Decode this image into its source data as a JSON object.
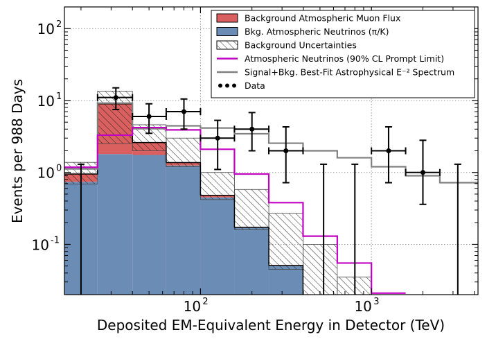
{
  "chart_data": {
    "type": "step-histogram",
    "xscale": "log",
    "yscale": "log",
    "xlim": [
      16,
      4200
    ],
    "ylim": [
      0.02,
      200
    ],
    "xlabel": "Deposited EM-Equivalent Energy in Detector (TeV)",
    "ylabel": "Events per 988 Days",
    "x_ticks": [
      {
        "value": 100,
        "base": "10",
        "exp": "2"
      },
      {
        "value": 1000,
        "base": "10",
        "exp": "3"
      }
    ],
    "y_ticks": [
      {
        "value": 0.1,
        "base": "10",
        "exp": "-1"
      },
      {
        "value": 1,
        "base": "10",
        "exp": "0"
      },
      {
        "value": 10,
        "base": "10",
        "exp": "1"
      },
      {
        "value": 100,
        "base": "10",
        "exp": "2"
      }
    ],
    "bin_edges": [
      16,
      25,
      40,
      63,
      100,
      158,
      251,
      398,
      631,
      1000,
      1585,
      2512,
      4200
    ],
    "neutrino_bkg": [
      0.74,
      1.8,
      1.75,
      1.25,
      0.45,
      0.17,
      0.05,
      0,
      0,
      0,
      0,
      0
    ],
    "muon_bkg": [
      0.21,
      7.2,
      0.85,
      0.12,
      0.03,
      0.002,
      0.001,
      0,
      0,
      0,
      0,
      0
    ],
    "uncertainty_band": [
      [
        0.69,
        1.38
      ],
      [
        2.5,
        13.5
      ],
      [
        2.0,
        4.6
      ],
      [
        1.2,
        3.0
      ],
      [
        0.42,
        1.0
      ],
      [
        0.16,
        0.58
      ],
      [
        0.045,
        0.27
      ],
      [
        0.02,
        0.1
      ],
      [
        0.02,
        0.035
      ],
      [
        0,
        0
      ],
      [
        0,
        0
      ],
      [
        0,
        0
      ]
    ],
    "prompt_limit": [
      1.18,
      3.3,
      4.2,
      3.9,
      2.1,
      0.95,
      0.38,
      0.13,
      0.055,
      0.021,
      0.0,
      0.0
    ],
    "best_fit": [
      1.12,
      9.2,
      4.05,
      4.45,
      4.15,
      3.45,
      2.55,
      2.0,
      1.6,
      1.2,
      0.9,
      0.72
    ],
    "data_points": [
      {
        "x": 20,
        "y": 0,
        "ylo": 0,
        "yhi": 1.3,
        "xlo": 20,
        "xhi": 20
      },
      {
        "x": 32,
        "y": 11,
        "ylo": 7.5,
        "yhi": 15,
        "xlo": 25,
        "xhi": 40
      },
      {
        "x": 50,
        "y": 6,
        "ylo": 3.5,
        "yhi": 9,
        "xlo": 40,
        "xhi": 63
      },
      {
        "x": 80,
        "y": 7,
        "ylo": 4,
        "yhi": 10.5,
        "xlo": 63,
        "xhi": 100
      },
      {
        "x": 126,
        "y": 3,
        "ylo": 1.1,
        "yhi": 5.3,
        "xlo": 100,
        "xhi": 158
      },
      {
        "x": 200,
        "y": 4,
        "ylo": 2,
        "yhi": 6.8,
        "xlo": 158,
        "xhi": 251
      },
      {
        "x": 316,
        "y": 2,
        "ylo": 0.72,
        "yhi": 4.3,
        "xlo": 251,
        "xhi": 398
      },
      {
        "x": 525,
        "y": 0,
        "ylo": 0,
        "yhi": 1.3,
        "xlo": 525,
        "xhi": 525
      },
      {
        "x": 800,
        "y": 0,
        "ylo": 0,
        "yhi": 1.3,
        "xlo": 800,
        "xhi": 800
      },
      {
        "x": 1260,
        "y": 2,
        "ylo": 0.72,
        "yhi": 4.3,
        "xlo": 1000,
        "xhi": 1585
      },
      {
        "x": 2000,
        "y": 1,
        "ylo": 0.36,
        "yhi": 2.8,
        "xlo": 1585,
        "xhi": 2512
      },
      {
        "x": 3200,
        "y": 0,
        "ylo": 0,
        "yhi": 1.3,
        "xlo": 3200,
        "xhi": 3200
      }
    ],
    "legend": [
      {
        "key": "muon",
        "label": "Background Atmospheric Muon Flux"
      },
      {
        "key": "neutrino",
        "label": "Bkg. Atmospheric Neutrinos (π/K)"
      },
      {
        "key": "uncert",
        "label": "Background Uncertainties"
      },
      {
        "key": "prompt",
        "label": "Atmospheric Neutrinos (90% CL Prompt Limit)"
      },
      {
        "key": "bestfit",
        "label": "Signal+Bkg. Best-Fit Astrophysical E⁻² Spectrum"
      },
      {
        "key": "data",
        "label": "Data"
      }
    ],
    "legend_position": "top-right",
    "grid": true
  },
  "colors": {
    "neutrino_fill": "#6b8cb4",
    "muon_fill": "#d9605e",
    "prompt_line": "#c200c2",
    "bestfit_line": "#808080",
    "data": "#000000"
  }
}
